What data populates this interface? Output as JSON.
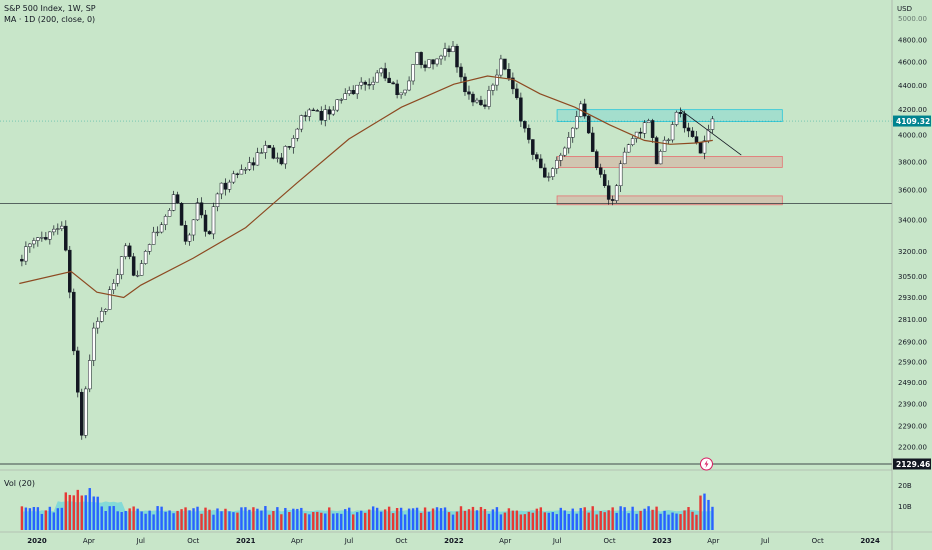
{
  "legend": {
    "title": "S&P 500 Index, 1W, SP",
    "ma": "MA · 1D (200, close, 0)",
    "vol": "Vol (20)"
  },
  "axis": {
    "currency": "USD"
  },
  "colors": {
    "background": "#c8e6c9",
    "up": "#ffffff",
    "down": "#131722",
    "ma": "#8d4a22",
    "vol_up": "#2962ff",
    "vol_down": "#e53935",
    "vol_ma": "#4dd0e1",
    "cyan_zone": "#26c6da",
    "red_zone": "#e57373",
    "last_tag": "#00838f"
  },
  "tags": {
    "last_price": "4109.32",
    "hline_price": "2129.46"
  },
  "chart_data": {
    "type": "candlestick",
    "title": "S&P 500 Index, 1W, SP",
    "price_scale": "log",
    "y_ticks": [
      5000,
      4800,
      4600,
      4400,
      4200,
      4000,
      3800,
      3600,
      3400,
      3200,
      3050,
      2930,
      2810,
      2690,
      2590,
      2490,
      2390,
      2290,
      2200
    ],
    "y_tick_labels": [
      "5000.00",
      "4800.00",
      "4600.00",
      "4400.00",
      "4200.00",
      "4000.00",
      "3800.00",
      "3600.00",
      "3400.00",
      "3200.00",
      "3050.00",
      "2930.00",
      "2810.00",
      "2690.00",
      "2590.00",
      "2490.00",
      "2390.00",
      "2290.00",
      "2200.00"
    ],
    "x_ticks": [
      "2020",
      "Apr",
      "Jul",
      "Oct",
      "2021",
      "Apr",
      "Jul",
      "Oct",
      "2022",
      "Apr",
      "Jul",
      "Oct",
      "2023",
      "Apr",
      "Jul",
      "Oct",
      "2024"
    ],
    "price_path": [
      [
        "2019-12-01",
        3150
      ],
      [
        "2020-01-15",
        3300
      ],
      [
        "2020-02-19",
        3386
      ],
      [
        "2020-03-01",
        3000
      ],
      [
        "2020-03-08",
        2700
      ],
      [
        "2020-03-23",
        2237
      ],
      [
        "2020-04-01",
        2500
      ],
      [
        "2020-04-15",
        2800
      ],
      [
        "2020-05-01",
        2850
      ],
      [
        "2020-06-08",
        3200
      ],
      [
        "2020-06-25",
        3050
      ],
      [
        "2020-07-15",
        3230
      ],
      [
        "2020-08-15",
        3380
      ],
      [
        "2020-09-02",
        3580
      ],
      [
        "2020-09-23",
        3240
      ],
      [
        "2020-10-12",
        3530
      ],
      [
        "2020-10-30",
        3270
      ],
      [
        "2020-11-15",
        3580
      ],
      [
        "2020-12-15",
        3700
      ],
      [
        "2021-01-15",
        3800
      ],
      [
        "2021-02-15",
        3930
      ],
      [
        "2021-03-04",
        3770
      ],
      [
        "2021-04-15",
        4180
      ],
      [
        "2021-05-15",
        4150
      ],
      [
        "2021-06-15",
        4250
      ],
      [
        "2021-07-15",
        4380
      ],
      [
        "2021-08-15",
        4450
      ],
      [
        "2021-09-02",
        4530
      ],
      [
        "2021-10-04",
        4300
      ],
      [
        "2021-11-01",
        4650
      ],
      [
        "2021-12-01",
        4550
      ],
      [
        "2021-12-31",
        4770
      ],
      [
        "2022-01-24",
        4350
      ],
      [
        "2022-02-24",
        4220
      ],
      [
        "2022-03-29",
        4630
      ],
      [
        "2022-04-15",
        4390
      ],
      [
        "2022-05-20",
        3900
      ],
      [
        "2022-06-16",
        3640
      ],
      [
        "2022-07-15",
        3860
      ],
      [
        "2022-08-16",
        4300
      ],
      [
        "2022-09-01",
        3930
      ],
      [
        "2022-09-30",
        3580
      ],
      [
        "2022-10-12",
        3490
      ],
      [
        "2022-10-21",
        3750
      ],
      [
        "2022-11-15",
        3990
      ],
      [
        "2022-12-13",
        4100
      ],
      [
        "2022-12-28",
        3780
      ],
      [
        "2023-01-15",
        3990
      ],
      [
        "2023-02-02",
        4190
      ],
      [
        "2023-02-20",
        4000
      ],
      [
        "2023-03-13",
        3850
      ],
      [
        "2023-03-31",
        4109
      ]
    ],
    "series": [
      {
        "name": "MA · 1D (200, close, 0)",
        "type": "line",
        "points": [
          [
            "2019-12-01",
            3010
          ],
          [
            "2020-03-01",
            3080
          ],
          [
            "2020-04-15",
            2960
          ],
          [
            "2020-06-01",
            2930
          ],
          [
            "2020-07-01",
            3000
          ],
          [
            "2020-10-01",
            3160
          ],
          [
            "2021-01-01",
            3350
          ],
          [
            "2021-04-01",
            3650
          ],
          [
            "2021-07-01",
            3970
          ],
          [
            "2021-10-01",
            4220
          ],
          [
            "2022-01-01",
            4410
          ],
          [
            "2022-03-01",
            4480
          ],
          [
            "2022-04-15",
            4450
          ],
          [
            "2022-06-01",
            4330
          ],
          [
            "2022-08-01",
            4220
          ],
          [
            "2022-10-01",
            4080
          ],
          [
            "2022-12-01",
            3960
          ],
          [
            "2023-01-15",
            3930
          ],
          [
            "2023-03-01",
            3940
          ],
          [
            "2023-03-31",
            3960
          ]
        ]
      }
    ],
    "volume": {
      "name": "Vol (20)",
      "axis_ticks": [
        "20B",
        "10B"
      ]
    },
    "zones": [
      {
        "kind": "resistance",
        "from": "2022-07-01",
        "to": "2023-07-31",
        "low": 4105,
        "high": 4200
      },
      {
        "kind": "support",
        "from": "2022-07-01",
        "to": "2023-07-31",
        "low": 3760,
        "high": 3840
      },
      {
        "kind": "support",
        "from": "2022-07-01",
        "to": "2023-07-31",
        "low": 3500,
        "high": 3560
      }
    ],
    "trendline": {
      "from": [
        "2023-02-02",
        4200
      ],
      "to": [
        "2023-05-20",
        3850
      ]
    },
    "hlines": [
      {
        "value": 3510
      },
      {
        "value": 2129.46
      }
    ],
    "last_price": 4109.32
  }
}
